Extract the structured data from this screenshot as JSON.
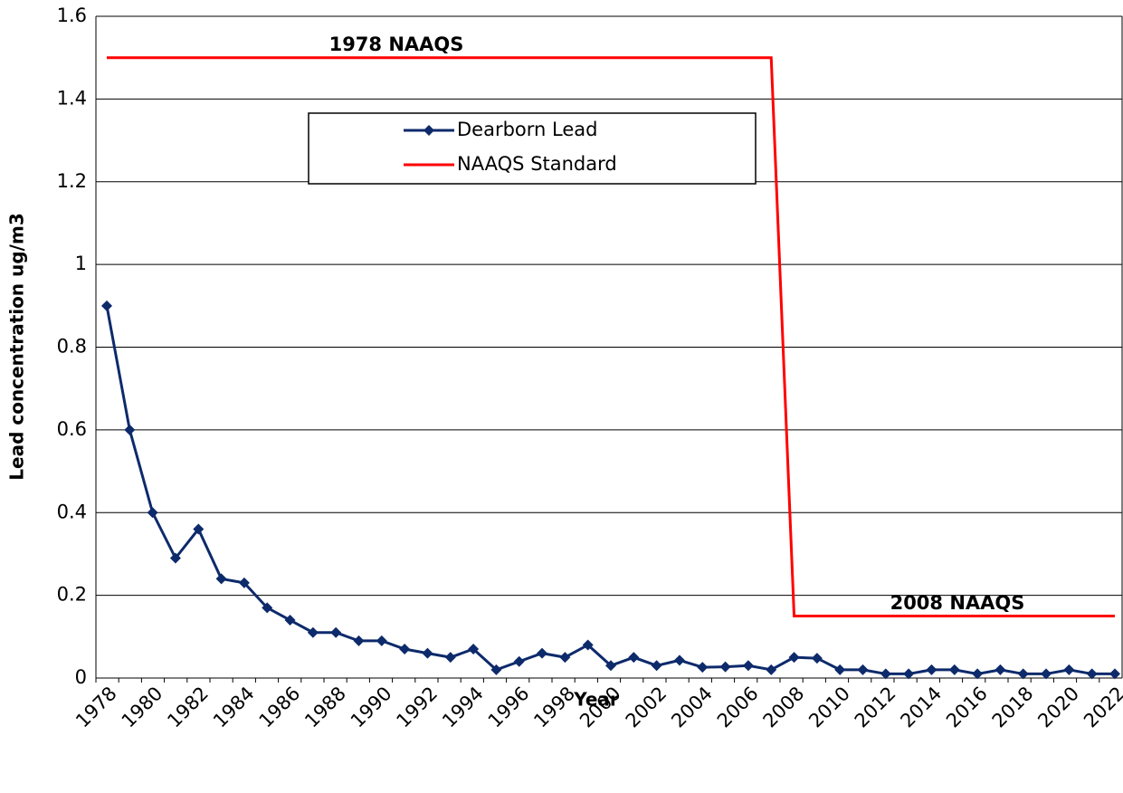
{
  "chart_data": {
    "type": "line",
    "annotations": [
      "1978 NAAQS",
      "2008 NAAQS"
    ],
    "xlabel": "Year",
    "ylabel": "Lead concentration ug/m3",
    "categories": [
      "1978",
      null,
      "1980",
      null,
      "1982",
      null,
      "1984",
      null,
      "1986",
      null,
      "1988",
      null,
      "1990",
      null,
      "1992",
      null,
      "1994",
      null,
      "1996",
      null,
      "1998",
      null,
      "2000",
      null,
      "2002",
      null,
      "2004",
      null,
      "2006",
      null,
      "2008",
      null,
      "2010",
      null,
      "2012",
      null,
      "2014",
      null,
      "2016",
      null,
      "2018",
      null,
      "2020",
      null,
      "2022"
    ],
    "series": [
      {
        "name": "Dearborn Lead",
        "color": "#0d2a6b",
        "marker": "diamond",
        "values": [
          0.9,
          0.6,
          0.4,
          0.29,
          0.36,
          0.24,
          0.23,
          0.17,
          0.14,
          0.11,
          0.11,
          0.09,
          0.09,
          0.07,
          0.06,
          0.05,
          0.07,
          0.02,
          0.04,
          0.06,
          0.05,
          0.08,
          0.03,
          0.05,
          0.03,
          0.043,
          0.026,
          0.027,
          0.03,
          0.02,
          0.05,
          0.048,
          0.02,
          0.02,
          0.01,
          0.01,
          0.02,
          0.02,
          0.01,
          0.02,
          0.01,
          0.01,
          0.02,
          0.01,
          0.01
        ]
      },
      {
        "name": "NAAQS Standard",
        "color": "#ff0000",
        "values": [
          1.5,
          1.5,
          1.5,
          1.5,
          1.5,
          1.5,
          1.5,
          1.5,
          1.5,
          1.5,
          1.5,
          1.5,
          1.5,
          1.5,
          1.5,
          1.5,
          1.5,
          1.5,
          1.5,
          1.5,
          1.5,
          1.5,
          1.5,
          1.5,
          1.5,
          1.5,
          1.5,
          1.5,
          1.5,
          1.5,
          0.15,
          0.15,
          0.15,
          0.15,
          0.15,
          0.15,
          0.15,
          0.15,
          0.15,
          0.15,
          0.15,
          0.15,
          0.15,
          0.15,
          0.15
        ]
      }
    ],
    "ylim": [
      0,
      1.6
    ],
    "yticks": [
      0,
      0.2,
      0.4,
      0.6,
      0.8,
      1,
      1.2,
      1.4,
      1.6
    ],
    "grid": true
  }
}
